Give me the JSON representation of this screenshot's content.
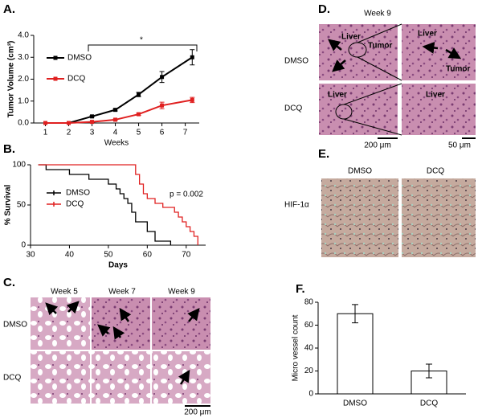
{
  "chart_data": [
    {
      "type": "line",
      "panel": "A.",
      "xlabel": "Weeks",
      "ylabel": "Tumor Volume (cm³)",
      "annotation": "*",
      "x": [
        1,
        2,
        3,
        4,
        5,
        6,
        7.3
      ],
      "xlim": [
        0.5,
        7.6
      ],
      "xticks": [
        1,
        2,
        3,
        4,
        5,
        6,
        7
      ],
      "ylim": [
        0,
        4
      ],
      "yticks": [
        {
          "value": 0,
          "label": "0.0"
        },
        {
          "value": 1,
          "label": "1.0"
        },
        {
          "value": 2,
          "label": "2.0"
        },
        {
          "value": 3,
          "label": "3.0"
        },
        {
          "value": 4,
          "label": "4.0"
        }
      ],
      "series": [
        {
          "name": "DMSO",
          "color": "#000000",
          "values": [
            0,
            0,
            0.3,
            0.6,
            1.3,
            2.1,
            3.0
          ],
          "errors": [
            0,
            0,
            0.03,
            0.05,
            0.1,
            0.25,
            0.35
          ]
        },
        {
          "name": "DCQ",
          "color": "#e02020",
          "values": [
            0,
            0,
            0.05,
            0.15,
            0.4,
            0.8,
            1.05
          ],
          "errors": [
            0,
            0,
            0.02,
            0.03,
            0.05,
            0.15,
            0.12
          ]
        }
      ]
    },
    {
      "type": "step",
      "panel": "B.",
      "xlabel": "Days",
      "ylabel": "% Survival",
      "annotation": "p = 0.002",
      "xlim": [
        30,
        75
      ],
      "xticks": [
        30,
        40,
        50,
        60,
        70
      ],
      "ylim": [
        0,
        100
      ],
      "yticks": [
        0,
        50,
        100
      ],
      "series": [
        {
          "name": "DMSO",
          "color": "#000000",
          "x": [
            32,
            34,
            40,
            45,
            50,
            52,
            53,
            54,
            55,
            56,
            57,
            60,
            62,
            66
          ],
          "values": [
            100,
            94,
            88,
            82,
            76,
            70,
            64,
            58,
            52,
            41,
            29,
            17,
            5,
            0
          ]
        },
        {
          "name": "DCQ",
          "color": "#e02020",
          "x": [
            32,
            57,
            58,
            59,
            60,
            62,
            64,
            67,
            68,
            69,
            70,
            71,
            72,
            73
          ],
          "values": [
            100,
            88,
            76,
            64,
            58,
            52,
            47,
            41,
            35,
            29,
            23,
            17,
            11,
            0
          ]
        }
      ]
    },
    {
      "type": "bar",
      "panel": "F.",
      "ylabel": "Micro vessel count",
      "categories": [
        "DMSO",
        "DCQ"
      ],
      "values": [
        70,
        20
      ],
      "errors": [
        8,
        6
      ],
      "color": "#ffffff",
      "ylim": [
        0,
        80
      ],
      "yticks": [
        0,
        20,
        40,
        60,
        80
      ]
    }
  ],
  "image_panels": {
    "C": {
      "label": "C.",
      "columns": [
        "Week 5",
        "Week 7",
        "Week 9"
      ],
      "rows": [
        "DMSO",
        "DCQ"
      ],
      "scale": "200 μm"
    },
    "D": {
      "label": "D.",
      "title": "Week 9",
      "rows": [
        "DMSO",
        "DCQ"
      ],
      "annotations": [
        "Liver",
        "Tumor",
        "Liver",
        "Tumor",
        "Liver",
        "Liver"
      ],
      "scales": [
        "200 μm",
        "50 μm"
      ]
    },
    "E": {
      "label": "E.",
      "columns": [
        "DMSO",
        "DCQ"
      ],
      "marker": "HIF-1α"
    }
  }
}
